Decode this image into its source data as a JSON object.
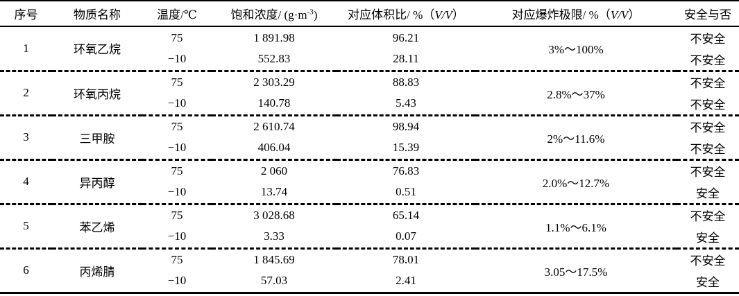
{
  "colors": {
    "text": "#000000",
    "background": "#ffffff",
    "border": "#000000"
  },
  "table": {
    "header": {
      "no": "序号",
      "name": "物质名称",
      "temp": "温度/℃",
      "conc_prefix": "饱和浓度/ (g·m",
      "conc_sup": "-3",
      "conc_suffix": ")",
      "vol_prefix": "对应体积比/ %（",
      "vol_vv": "V/V",
      "vol_suffix": "）",
      "expl_prefix": "对应爆炸极限/ %（",
      "expl_vv": "V/V",
      "expl_suffix": "）",
      "safe": "安全与否"
    },
    "rows": [
      {
        "no": "1",
        "name": "环氧乙烷",
        "limit": "3%～100%",
        "sub": [
          {
            "temp": "75",
            "conc": "1 891.98",
            "vol": "96.21",
            "safe": "不安全"
          },
          {
            "temp": "−10",
            "conc": "552.83",
            "vol": "28.11",
            "safe": "不安全"
          }
        ]
      },
      {
        "no": "2",
        "name": "环氧丙烷",
        "limit": "2.8%～37%",
        "sub": [
          {
            "temp": "75",
            "conc": "2 303.29",
            "vol": "88.83",
            "safe": "不安全"
          },
          {
            "temp": "−10",
            "conc": "140.78",
            "vol": "5.43",
            "safe": "不安全"
          }
        ]
      },
      {
        "no": "3",
        "name": "三甲胺",
        "limit": "2%～11.6%",
        "sub": [
          {
            "temp": "75",
            "conc": "2 610.74",
            "vol": "98.94",
            "safe": "不安全"
          },
          {
            "temp": "−10",
            "conc": "406.04",
            "vol": "15.39",
            "safe": "不安全"
          }
        ]
      },
      {
        "no": "4",
        "name": "异丙醇",
        "limit": "2.0%～12.7%",
        "sub": [
          {
            "temp": "75",
            "conc": "2 060",
            "vol": "76.83",
            "safe": "不安全"
          },
          {
            "temp": "−10",
            "conc": "13.74",
            "vol": "0.51",
            "safe": "安全"
          }
        ]
      },
      {
        "no": "5",
        "name": "苯乙烯",
        "limit": "1.1%～6.1%",
        "sub": [
          {
            "temp": "75",
            "conc": "3 028.68",
            "vol": "65.14",
            "safe": "不安全"
          },
          {
            "temp": "−10",
            "conc": "3.33",
            "vol": "0.07",
            "safe": "安全"
          }
        ]
      },
      {
        "no": "6",
        "name": "丙烯腈",
        "limit": "3.05～17.5%",
        "sub": [
          {
            "temp": "75",
            "conc": "1 845.69",
            "vol": "78.01",
            "safe": "不安全"
          },
          {
            "temp": "−10",
            "conc": "57.03",
            "vol": "2.41",
            "safe": "安全"
          }
        ]
      }
    ]
  }
}
